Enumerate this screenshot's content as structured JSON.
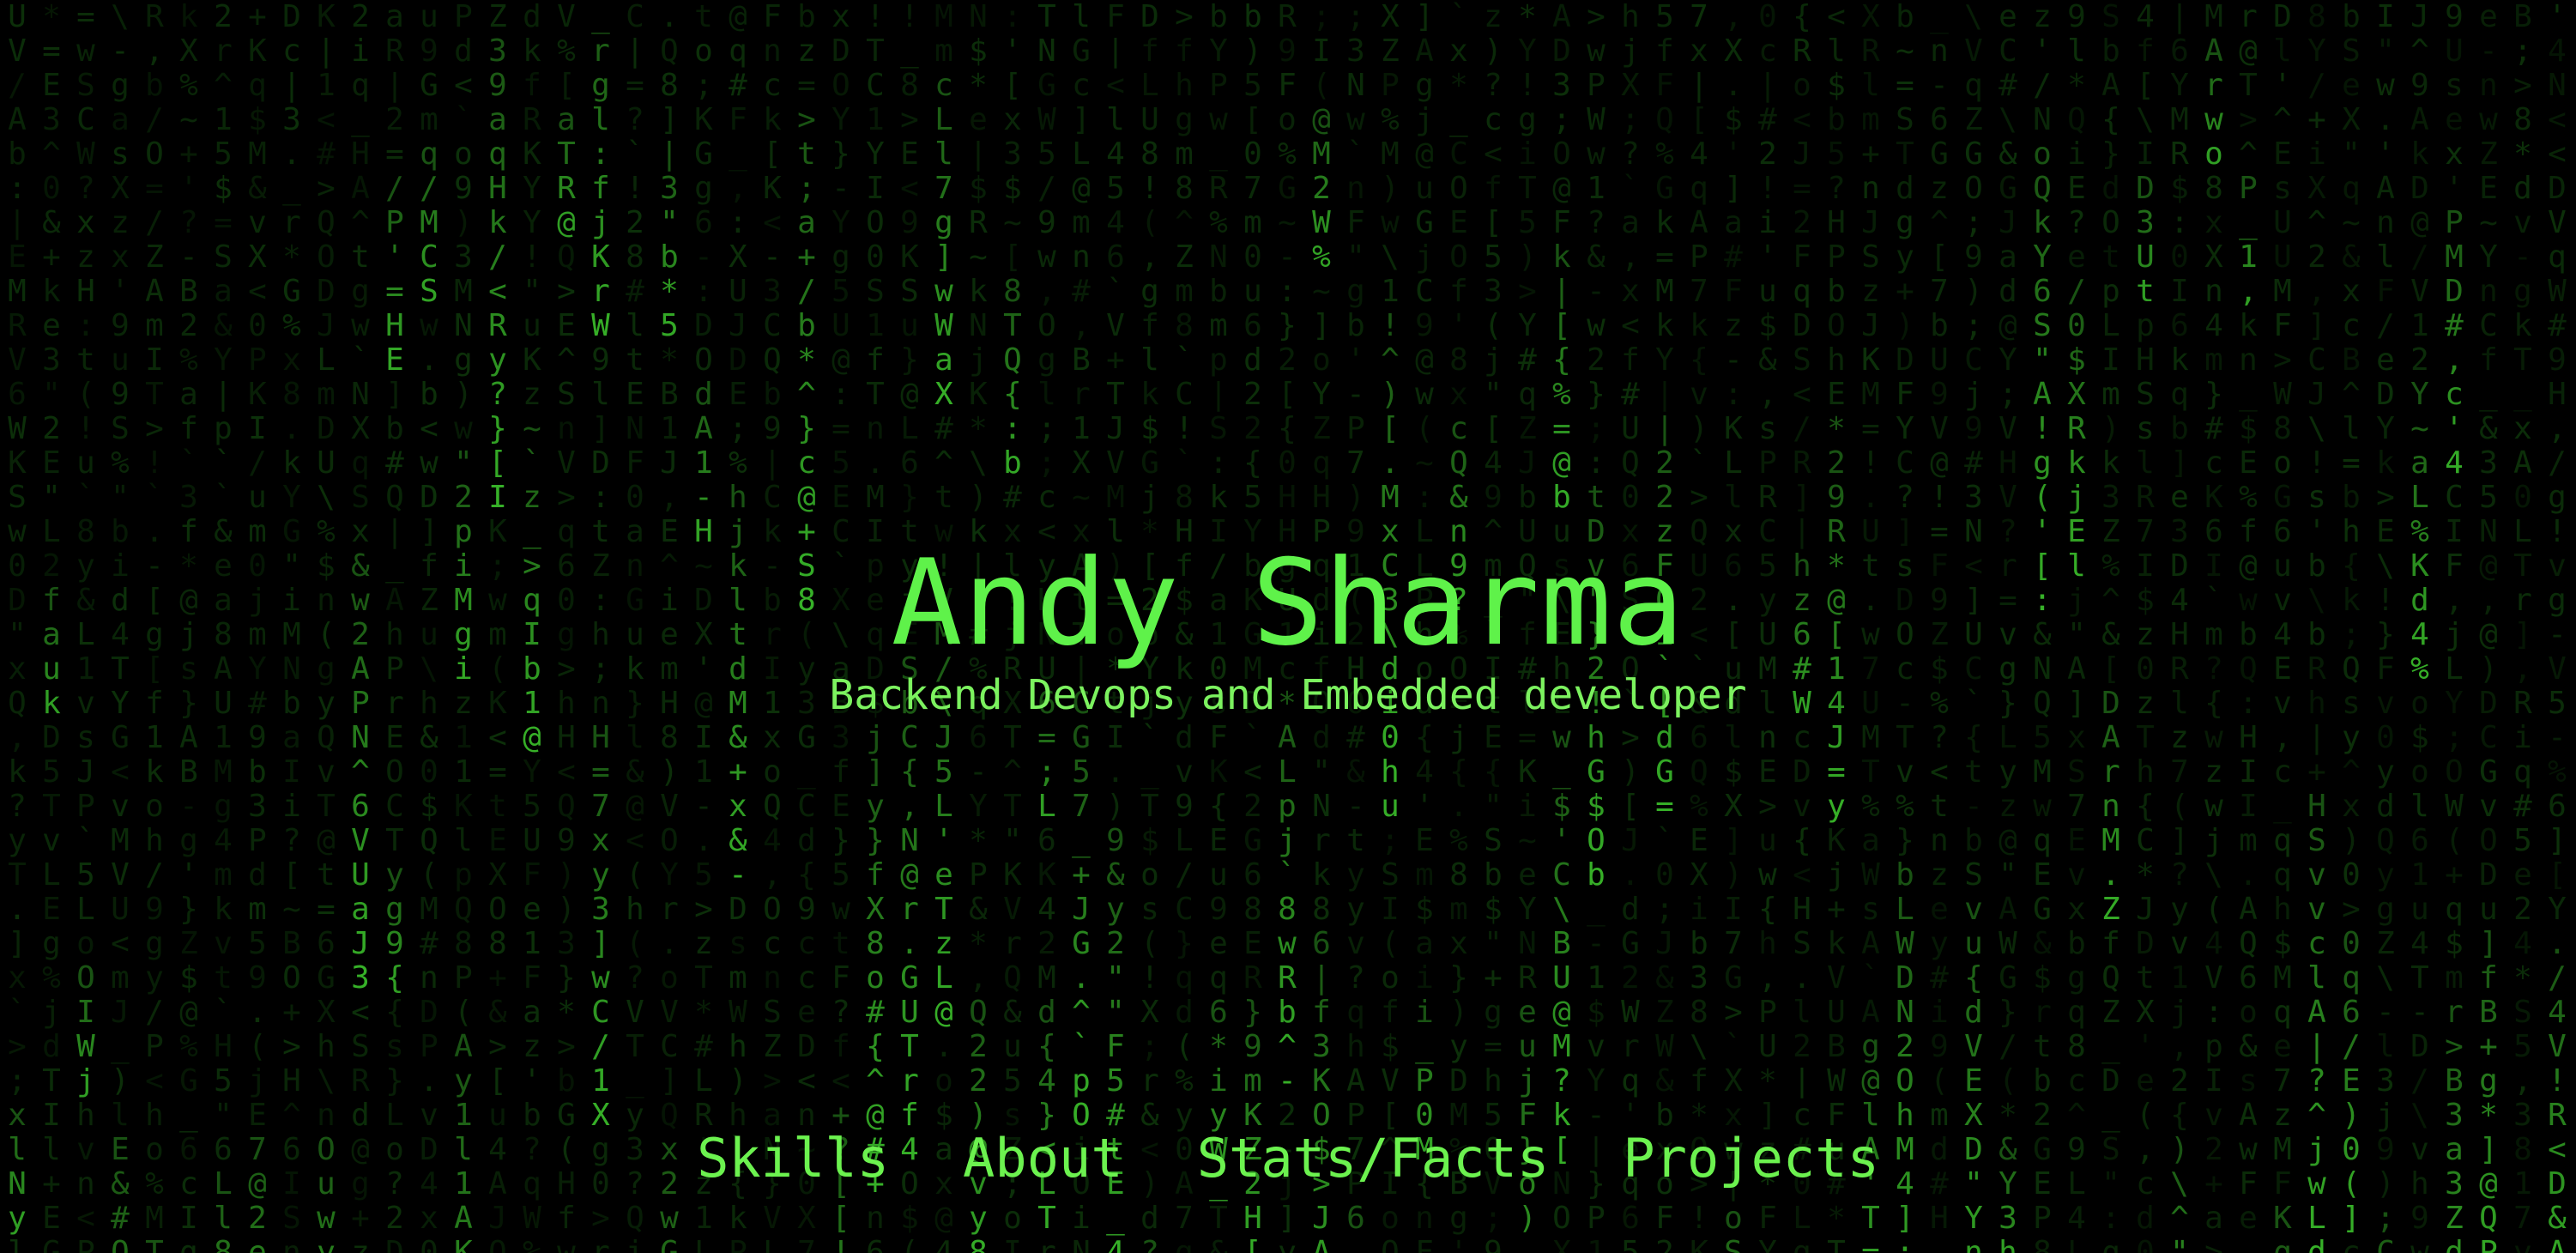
{
  "hero": {
    "name": "Andy Sharma",
    "subtitle": "Backend Devops and Embedded developer"
  },
  "nav": {
    "items": [
      {
        "label": "Skills"
      },
      {
        "label": "About"
      },
      {
        "label": "Stats/Facts"
      },
      {
        "label": "Projects"
      }
    ]
  },
  "background": {
    "effect": "matrix-digital-rain",
    "glyph_color": "#39b82a",
    "dim_glyph_color": "#0f3a0c",
    "background_color": "#000000",
    "accent_color": "#5ff24a"
  }
}
